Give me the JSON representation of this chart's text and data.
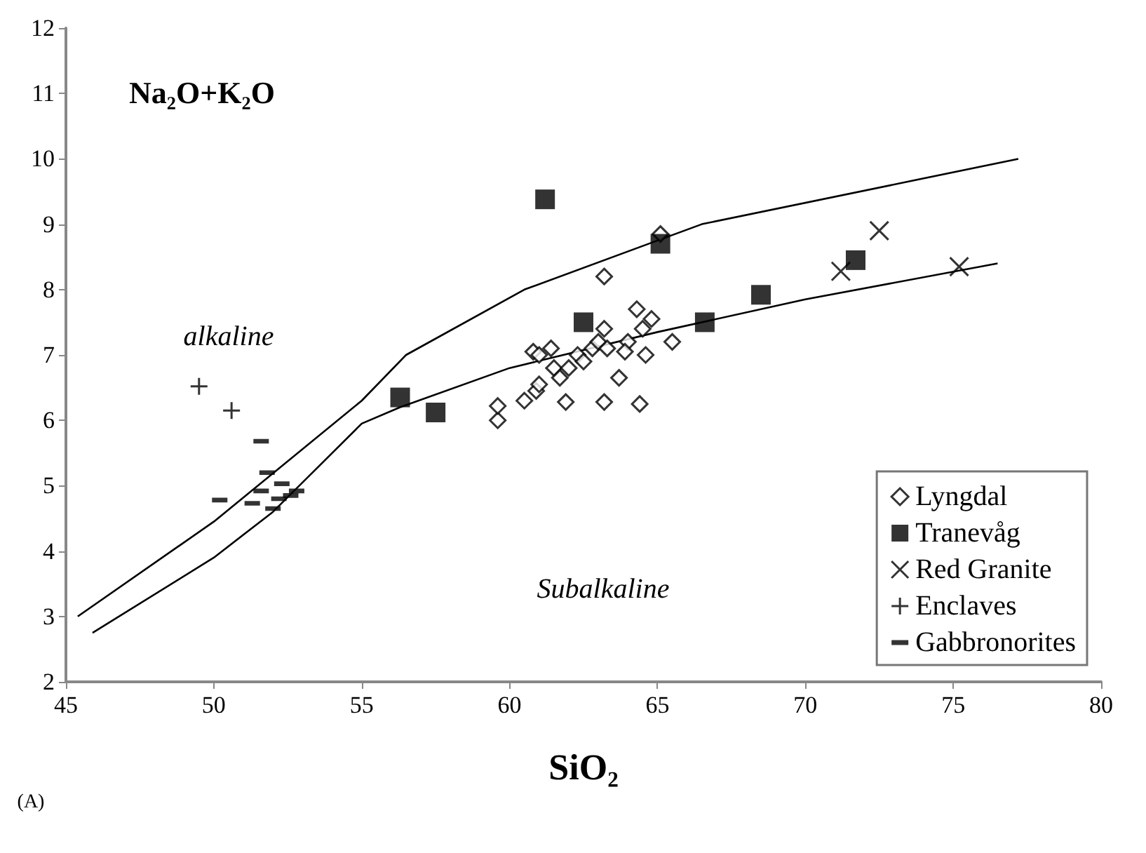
{
  "chart_data": {
    "type": "scatter",
    "xlabel": "SiO₂",
    "ylabel": "Na₂O+K₂O",
    "xlim": [
      45,
      80
    ],
    "xticks": [
      45,
      50,
      55,
      60,
      65,
      70,
      75,
      80
    ],
    "ylim": [
      2,
      12
    ],
    "yticks": [
      2,
      3,
      4,
      5,
      6,
      7,
      8,
      9,
      10,
      11,
      12
    ],
    "grid": false,
    "legend": "bottom right",
    "annotations": [
      "alkaline",
      "Subalkaline",
      "(A)"
    ],
    "series": [
      {
        "type": "line",
        "color": "#000000",
        "marker": "none",
        "line_style": "solid",
        "x": [
          45.4,
          50,
          55,
          56.5,
          60.5,
          65,
          66.5,
          77.2
        ],
        "values": [
          3.0,
          4.45,
          6.3,
          7.0,
          8.0,
          8.75,
          9.0,
          10.0
        ]
      },
      {
        "type": "line",
        "color": "#000000",
        "marker": "none",
        "line_style": "solid",
        "x": [
          45.9,
          50,
          52,
          54,
          55,
          56.3,
          60,
          65,
          70,
          76.5
        ],
        "values": [
          2.75,
          3.9,
          4.6,
          5.5,
          5.95,
          6.2,
          6.8,
          7.35,
          7.85,
          8.4
        ]
      },
      {
        "name": "Lyngdal",
        "color": "#000000",
        "marker": "diamond",
        "x": [
          59.6,
          59.6,
          60.5,
          60.8,
          61.0,
          60.9,
          61.0,
          61.4,
          61.5,
          61.7,
          61.9,
          62.0,
          62.3,
          62.5,
          62.8,
          63.0,
          63.2,
          63.2,
          63.3,
          63.2,
          63.7,
          64.0,
          64.3,
          64.5,
          64.6,
          64.4,
          64.8,
          65.1,
          65.5,
          63.9
        ],
        "values": [
          6.0,
          6.22,
          6.3,
          7.05,
          7.0,
          6.45,
          6.55,
          7.1,
          6.8,
          6.65,
          6.28,
          6.8,
          7.0,
          6.9,
          7.1,
          7.2,
          8.2,
          7.4,
          7.1,
          6.28,
          6.65,
          7.2,
          7.7,
          7.4,
          7.0,
          6.25,
          7.55,
          8.85,
          7.2,
          7.05
        ]
      },
      {
        "name": "Tranevåg",
        "color": "#000000",
        "marker": "square",
        "x": [
          56.3,
          57.5,
          61.2,
          62.5,
          65.1,
          66.6,
          68.5,
          71.7
        ],
        "values": [
          6.35,
          6.12,
          9.38,
          7.5,
          8.7,
          7.5,
          7.92,
          8.45
        ]
      },
      {
        "name": "Red Granite",
        "color": "#000000",
        "marker": "cross",
        "x": [
          71.2,
          72.5,
          75.2
        ],
        "values": [
          8.28,
          8.9,
          8.35
        ]
      },
      {
        "name": "Enclaves",
        "color": "#000000",
        "marker": "plus",
        "x": [
          49.5,
          50.6
        ],
        "values": [
          6.52,
          6.15
        ]
      },
      {
        "name": "Gabbronorites",
        "color": "#000000",
        "x": [
          51.6,
          50.2,
          51.8,
          52.3,
          51.6,
          51.3,
          52.0,
          52.2,
          52.6,
          52.8
        ],
        "values": [
          5.68,
          4.78,
          5.2,
          5.03,
          4.92,
          4.73,
          4.65,
          4.8,
          4.85,
          4.92
        ]
      }
    ]
  }
}
